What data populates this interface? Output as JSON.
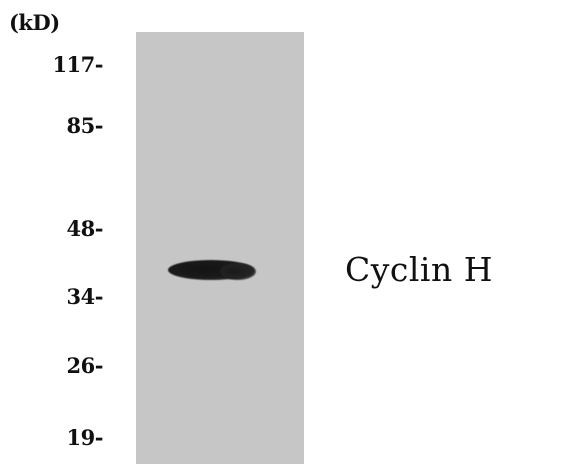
{
  "blot": {
    "unit": "(kD)",
    "markers": [
      {
        "label": "117-",
        "kd": 117
      },
      {
        "label": "85-",
        "kd": 85
      },
      {
        "label": "48-",
        "kd": 48
      },
      {
        "label": "34-",
        "kd": 34
      },
      {
        "label": "26-",
        "kd": 26
      },
      {
        "label": "19-",
        "kd": 19
      }
    ],
    "protein": "Cyclin H",
    "colors": {
      "lane": "#c6c6c6",
      "band": "#1a1a1a",
      "background": "#ffffff"
    }
  }
}
